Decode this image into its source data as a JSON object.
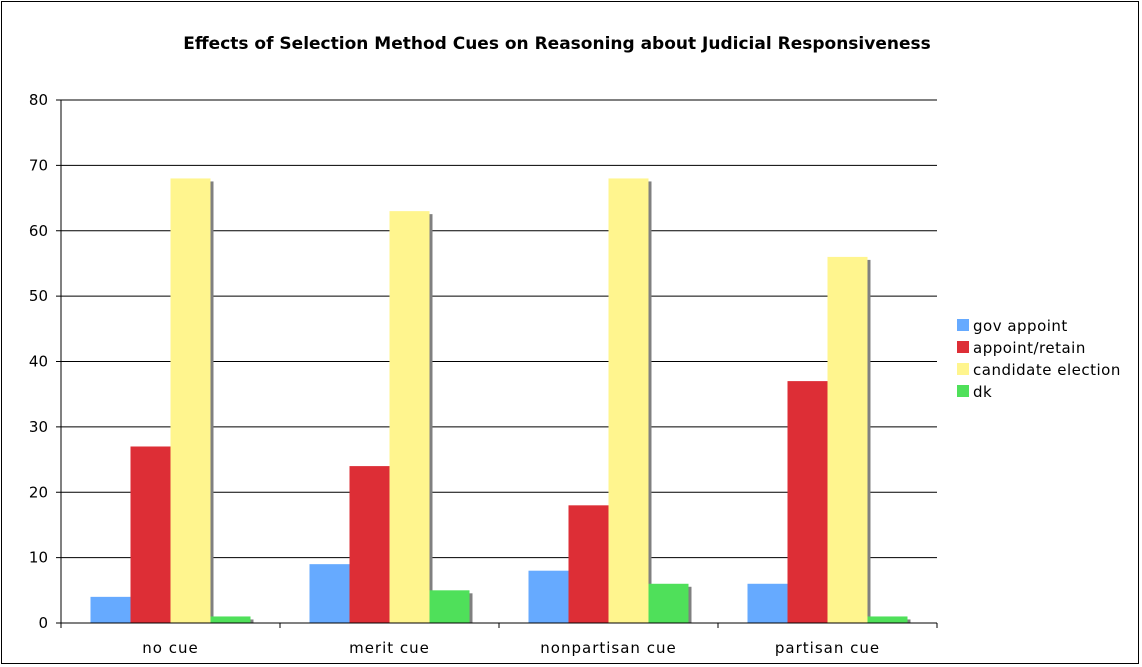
{
  "chart_data": {
    "type": "bar",
    "title": "Effects of Selection Method Cues on Reasoning about Judicial Responsiveness",
    "xlabel": "",
    "ylabel": "",
    "categories": [
      "no cue",
      "merit cue",
      "nonpartisan cue",
      "partisan cue"
    ],
    "ylim": [
      0,
      80
    ],
    "yticks": [
      0,
      10,
      20,
      30,
      40,
      50,
      60,
      70,
      80
    ],
    "grid": true,
    "legend_position": "right",
    "series": [
      {
        "name": "gov appoint",
        "color": "#66aaff",
        "values": [
          4,
          9,
          8,
          6
        ]
      },
      {
        "name": "appoint/retain",
        "color": "#dd2e36",
        "values": [
          27,
          24,
          18,
          37
        ]
      },
      {
        "name": "candidate election",
        "color": "#fff58e",
        "values": [
          68,
          63,
          68,
          56
        ]
      },
      {
        "name": "dk",
        "color": "#4fe05a",
        "values": [
          1,
          5,
          6,
          1
        ]
      }
    ]
  }
}
